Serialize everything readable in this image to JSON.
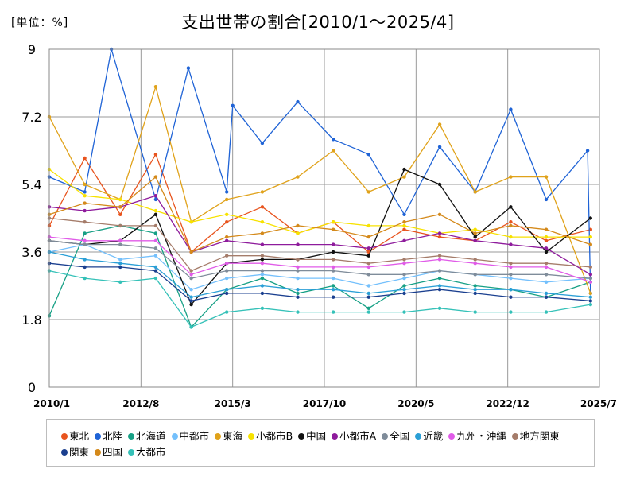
{
  "unit_label": "[単位：%]",
  "title": "支出世帯の割合[2010/1〜2025/4]",
  "chart_data": {
    "type": "line",
    "title": "支出世帯の割合[2010/1〜2025/4]",
    "unit": "[単位：%]",
    "xlabel": "",
    "ylabel": "",
    "x_range": [
      "2010/1",
      "2025/7"
    ],
    "x_ticks": [
      "2010/1",
      "2012/8",
      "2015/3",
      "2017/10",
      "2020/5",
      "2022/12",
      "2025/7"
    ],
    "ylim": [
      0,
      9
    ],
    "y_ticks": [
      "0",
      "1.8",
      "3.6",
      "5.4",
      "7.2",
      "9"
    ],
    "grid": true,
    "legend_position": "bottom",
    "series": [
      {
        "name": "東北",
        "color": "#e8541e",
        "samples": [
          [
            "2010/1",
            4.3
          ],
          [
            "2011/1",
            6.1
          ],
          [
            "2012/1",
            4.6
          ],
          [
            "2013/1",
            6.2
          ],
          [
            "2014/1",
            3.6
          ],
          [
            "2015/1",
            4.4
          ],
          [
            "2016/1",
            4.8
          ],
          [
            "2017/1",
            4.1
          ],
          [
            "2018/1",
            4.4
          ],
          [
            "2019/1",
            3.6
          ],
          [
            "2020/1",
            4.2
          ],
          [
            "2021/1",
            4.0
          ],
          [
            "2022/1",
            3.9
          ],
          [
            "2023/1",
            4.4
          ],
          [
            "2024/1",
            3.9
          ],
          [
            "2025/4",
            4.2
          ]
        ]
      },
      {
        "name": "北陸",
        "color": "#1f63d6",
        "samples": [
          [
            "2010/1",
            5.6
          ],
          [
            "2011/1",
            5.2
          ],
          [
            "2011/10",
            9.0
          ],
          [
            "2013/1",
            5.0
          ],
          [
            "2013/12",
            8.5
          ],
          [
            "2015/1",
            5.2
          ],
          [
            "2015/3",
            7.5
          ],
          [
            "2016/1",
            6.5
          ],
          [
            "2017/1",
            7.6
          ],
          [
            "2018/1",
            6.6
          ],
          [
            "2019/1",
            6.2
          ],
          [
            "2020/1",
            4.6
          ],
          [
            "2021/1",
            6.4
          ],
          [
            "2022/1",
            5.2
          ],
          [
            "2023/1",
            7.4
          ],
          [
            "2024/1",
            5.0
          ],
          [
            "2025/3",
            6.3
          ],
          [
            "2025/4",
            2.5
          ]
        ]
      },
      {
        "name": "北海道",
        "color": "#16a085",
        "samples": [
          [
            "2010/1",
            1.9
          ],
          [
            "2011/1",
            4.1
          ],
          [
            "2012/1",
            4.3
          ],
          [
            "2013/1",
            4.1
          ],
          [
            "2014/1",
            1.6
          ],
          [
            "2015/1",
            2.6
          ],
          [
            "2016/1",
            2.9
          ],
          [
            "2017/1",
            2.5
          ],
          [
            "2018/1",
            2.7
          ],
          [
            "2019/1",
            2.1
          ],
          [
            "2020/1",
            2.7
          ],
          [
            "2021/1",
            2.9
          ],
          [
            "2022/1",
            2.7
          ],
          [
            "2023/1",
            2.6
          ],
          [
            "2024/1",
            2.4
          ],
          [
            "2025/4",
            2.8
          ]
        ]
      },
      {
        "name": "中都市",
        "color": "#74c0fc",
        "samples": [
          [
            "2010/1",
            3.6
          ],
          [
            "2011/1",
            3.8
          ],
          [
            "2012/1",
            3.4
          ],
          [
            "2013/1",
            3.5
          ],
          [
            "2014/1",
            2.6
          ],
          [
            "2015/1",
            2.9
          ],
          [
            "2016/1",
            3.0
          ],
          [
            "2017/1",
            2.9
          ],
          [
            "2018/1",
            2.9
          ],
          [
            "2019/1",
            2.7
          ],
          [
            "2020/1",
            2.9
          ],
          [
            "2021/1",
            3.1
          ],
          [
            "2022/1",
            3.0
          ],
          [
            "2023/1",
            2.9
          ],
          [
            "2024/1",
            2.8
          ],
          [
            "2025/4",
            2.9
          ]
        ]
      },
      {
        "name": "東海",
        "color": "#e0a21a",
        "samples": [
          [
            "2010/1",
            7.2
          ],
          [
            "2011/1",
            5.4
          ],
          [
            "2012/1",
            5.0
          ],
          [
            "2013/1",
            8.0
          ],
          [
            "2014/1",
            4.4
          ],
          [
            "2015/1",
            5.0
          ],
          [
            "2016/1",
            5.2
          ],
          [
            "2017/1",
            5.6
          ],
          [
            "2018/1",
            6.3
          ],
          [
            "2019/1",
            5.2
          ],
          [
            "2020/1",
            5.6
          ],
          [
            "2021/1",
            7.0
          ],
          [
            "2022/1",
            5.2
          ],
          [
            "2023/1",
            5.6
          ],
          [
            "2024/1",
            5.6
          ],
          [
            "2025/4",
            2.5
          ]
        ]
      },
      {
        "name": "小都市B",
        "color": "#f7e200",
        "samples": [
          [
            "2010/1",
            5.8
          ],
          [
            "2011/1",
            5.1
          ],
          [
            "2012/1",
            5.0
          ],
          [
            "2013/1",
            4.7
          ],
          [
            "2014/1",
            4.4
          ],
          [
            "2015/1",
            4.6
          ],
          [
            "2016/1",
            4.4
          ],
          [
            "2017/1",
            4.1
          ],
          [
            "2018/1",
            4.4
          ],
          [
            "2019/1",
            4.3
          ],
          [
            "2020/1",
            4.3
          ],
          [
            "2021/1",
            4.1
          ],
          [
            "2022/1",
            4.2
          ],
          [
            "2023/1",
            4.0
          ],
          [
            "2024/1",
            4.0
          ],
          [
            "2025/4",
            4.0
          ]
        ]
      },
      {
        "name": "中国",
        "color": "#111111",
        "samples": [
          [
            "2010/1",
            3.9
          ],
          [
            "2011/1",
            3.8
          ],
          [
            "2012/1",
            3.9
          ],
          [
            "2013/1",
            4.6
          ],
          [
            "2014/1",
            2.2
          ],
          [
            "2015/1",
            3.3
          ],
          [
            "2016/1",
            3.4
          ],
          [
            "2017/1",
            3.4
          ],
          [
            "2018/1",
            3.6
          ],
          [
            "2019/1",
            3.5
          ],
          [
            "2020/1",
            5.8
          ],
          [
            "2021/1",
            5.4
          ],
          [
            "2022/1",
            4.0
          ],
          [
            "2023/1",
            4.8
          ],
          [
            "2024/1",
            3.6
          ],
          [
            "2025/4",
            4.5
          ]
        ]
      },
      {
        "name": "小都市A",
        "color": "#8e1b9c",
        "samples": [
          [
            "2010/1",
            4.8
          ],
          [
            "2011/1",
            4.7
          ],
          [
            "2012/1",
            4.8
          ],
          [
            "2013/1",
            5.1
          ],
          [
            "2014/1",
            3.6
          ],
          [
            "2015/1",
            3.9
          ],
          [
            "2016/1",
            3.8
          ],
          [
            "2017/1",
            3.8
          ],
          [
            "2018/1",
            3.8
          ],
          [
            "2019/1",
            3.7
          ],
          [
            "2020/1",
            3.9
          ],
          [
            "2021/1",
            4.1
          ],
          [
            "2022/1",
            3.9
          ],
          [
            "2023/1",
            3.8
          ],
          [
            "2024/1",
            3.7
          ],
          [
            "2025/4",
            3.0
          ]
        ]
      },
      {
        "name": "全国",
        "color": "#7f8c9a",
        "samples": [
          [
            "2010/1",
            3.9
          ],
          [
            "2011/1",
            3.8
          ],
          [
            "2012/1",
            3.8
          ],
          [
            "2013/1",
            3.7
          ],
          [
            "2014/1",
            2.9
          ],
          [
            "2015/1",
            3.1
          ],
          [
            "2016/1",
            3.1
          ],
          [
            "2017/1",
            3.1
          ],
          [
            "2018/1",
            3.1
          ],
          [
            "2019/1",
            3.0
          ],
          [
            "2020/1",
            3.0
          ],
          [
            "2021/1",
            3.1
          ],
          [
            "2022/1",
            3.0
          ],
          [
            "2023/1",
            3.0
          ],
          [
            "2024/1",
            3.0
          ],
          [
            "2025/4",
            2.9
          ]
        ]
      },
      {
        "name": "近畿",
        "color": "#2a9fd6",
        "samples": [
          [
            "2010/1",
            3.6
          ],
          [
            "2011/1",
            3.4
          ],
          [
            "2012/1",
            3.3
          ],
          [
            "2013/1",
            3.2
          ],
          [
            "2014/1",
            2.4
          ],
          [
            "2015/1",
            2.6
          ],
          [
            "2016/1",
            2.7
          ],
          [
            "2017/1",
            2.6
          ],
          [
            "2018/1",
            2.6
          ],
          [
            "2019/1",
            2.5
          ],
          [
            "2020/1",
            2.6
          ],
          [
            "2021/1",
            2.7
          ],
          [
            "2022/1",
            2.6
          ],
          [
            "2023/1",
            2.6
          ],
          [
            "2024/1",
            2.5
          ],
          [
            "2025/4",
            2.4
          ]
        ]
      },
      {
        "name": "九州・沖縄",
        "color": "#e05be8",
        "samples": [
          [
            "2010/1",
            4.0
          ],
          [
            "2011/1",
            3.9
          ],
          [
            "2012/1",
            3.9
          ],
          [
            "2013/1",
            3.9
          ],
          [
            "2014/1",
            3.0
          ],
          [
            "2015/1",
            3.3
          ],
          [
            "2016/1",
            3.3
          ],
          [
            "2017/1",
            3.2
          ],
          [
            "2018/1",
            3.2
          ],
          [
            "2019/1",
            3.2
          ],
          [
            "2020/1",
            3.3
          ],
          [
            "2021/1",
            3.4
          ],
          [
            "2022/1",
            3.3
          ],
          [
            "2023/1",
            3.2
          ],
          [
            "2024/1",
            3.2
          ],
          [
            "2025/4",
            2.8
          ]
        ]
      },
      {
        "name": "地方関東",
        "color": "#a57c6a",
        "samples": [
          [
            "2010/1",
            4.5
          ],
          [
            "2011/1",
            4.4
          ],
          [
            "2012/1",
            4.3
          ],
          [
            "2013/1",
            4.3
          ],
          [
            "2014/1",
            3.1
          ],
          [
            "2015/1",
            3.5
          ],
          [
            "2016/1",
            3.5
          ],
          [
            "2017/1",
            3.4
          ],
          [
            "2018/1",
            3.4
          ],
          [
            "2019/1",
            3.3
          ],
          [
            "2020/1",
            3.4
          ],
          [
            "2021/1",
            3.5
          ],
          [
            "2022/1",
            3.4
          ],
          [
            "2023/1",
            3.3
          ],
          [
            "2024/1",
            3.3
          ],
          [
            "2025/4",
            3.2
          ]
        ]
      },
      {
        "name": "関東",
        "color": "#1a3f8f",
        "samples": [
          [
            "2010/1",
            3.3
          ],
          [
            "2011/1",
            3.2
          ],
          [
            "2012/1",
            3.2
          ],
          [
            "2013/1",
            3.1
          ],
          [
            "2014/1",
            2.3
          ],
          [
            "2015/1",
            2.5
          ],
          [
            "2016/1",
            2.5
          ],
          [
            "2017/1",
            2.4
          ],
          [
            "2018/1",
            2.4
          ],
          [
            "2019/1",
            2.4
          ],
          [
            "2020/1",
            2.5
          ],
          [
            "2021/1",
            2.6
          ],
          [
            "2022/1",
            2.5
          ],
          [
            "2023/1",
            2.4
          ],
          [
            "2024/1",
            2.4
          ],
          [
            "2025/4",
            2.3
          ]
        ]
      },
      {
        "name": "四国",
        "color": "#d4891a",
        "samples": [
          [
            "2010/1",
            4.6
          ],
          [
            "2011/1",
            4.9
          ],
          [
            "2012/1",
            4.8
          ],
          [
            "2013/1",
            5.6
          ],
          [
            "2014/1",
            3.6
          ],
          [
            "2015/1",
            4.0
          ],
          [
            "2016/1",
            4.1
          ],
          [
            "2017/1",
            4.3
          ],
          [
            "2018/1",
            4.2
          ],
          [
            "2019/1",
            4.0
          ],
          [
            "2020/1",
            4.4
          ],
          [
            "2021/1",
            4.6
          ],
          [
            "2022/1",
            4.1
          ],
          [
            "2023/1",
            4.3
          ],
          [
            "2024/1",
            4.2
          ],
          [
            "2025/4",
            3.8
          ]
        ]
      },
      {
        "name": "大都市",
        "color": "#35c1b8",
        "samples": [
          [
            "2010/1",
            3.1
          ],
          [
            "2011/1",
            2.9
          ],
          [
            "2012/1",
            2.8
          ],
          [
            "2013/1",
            2.9
          ],
          [
            "2014/1",
            1.6
          ],
          [
            "2015/1",
            2.0
          ],
          [
            "2016/1",
            2.1
          ],
          [
            "2017/1",
            2.0
          ],
          [
            "2018/1",
            2.0
          ],
          [
            "2019/1",
            2.0
          ],
          [
            "2020/1",
            2.0
          ],
          [
            "2021/1",
            2.1
          ],
          [
            "2022/1",
            2.0
          ],
          [
            "2023/1",
            2.0
          ],
          [
            "2024/1",
            2.0
          ],
          [
            "2025/4",
            2.2
          ]
        ]
      }
    ]
  }
}
